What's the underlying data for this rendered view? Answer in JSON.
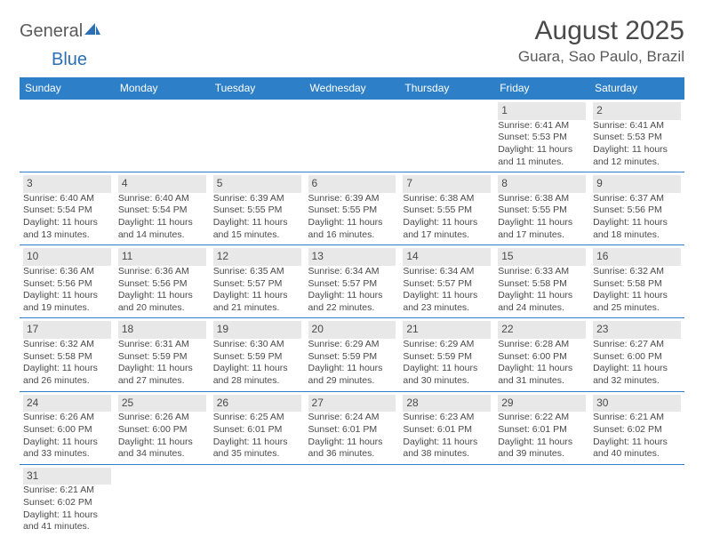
{
  "logo": {
    "text1": "General",
    "text2": "Blue"
  },
  "title": "August 2025",
  "location": "Guara, Sao Paulo, Brazil",
  "dayHeaders": [
    "Sunday",
    "Monday",
    "Tuesday",
    "Wednesday",
    "Thursday",
    "Friday",
    "Saturday"
  ],
  "colors": {
    "headerBg": "#2d7fc7",
    "headerText": "#ffffff",
    "dayNumBg": "#e8e8e8",
    "borderColor": "#2d7fc7",
    "textColor": "#4a4a4a",
    "logoBlue": "#2d6fb5"
  },
  "weeks": [
    [
      null,
      null,
      null,
      null,
      null,
      {
        "n": "1",
        "sunrise": "Sunrise: 6:41 AM",
        "sunset": "Sunset: 5:53 PM",
        "daylight": "Daylight: 11 hours and 11 minutes."
      },
      {
        "n": "2",
        "sunrise": "Sunrise: 6:41 AM",
        "sunset": "Sunset: 5:53 PM",
        "daylight": "Daylight: 11 hours and 12 minutes."
      }
    ],
    [
      {
        "n": "3",
        "sunrise": "Sunrise: 6:40 AM",
        "sunset": "Sunset: 5:54 PM",
        "daylight": "Daylight: 11 hours and 13 minutes."
      },
      {
        "n": "4",
        "sunrise": "Sunrise: 6:40 AM",
        "sunset": "Sunset: 5:54 PM",
        "daylight": "Daylight: 11 hours and 14 minutes."
      },
      {
        "n": "5",
        "sunrise": "Sunrise: 6:39 AM",
        "sunset": "Sunset: 5:55 PM",
        "daylight": "Daylight: 11 hours and 15 minutes."
      },
      {
        "n": "6",
        "sunrise": "Sunrise: 6:39 AM",
        "sunset": "Sunset: 5:55 PM",
        "daylight": "Daylight: 11 hours and 16 minutes."
      },
      {
        "n": "7",
        "sunrise": "Sunrise: 6:38 AM",
        "sunset": "Sunset: 5:55 PM",
        "daylight": "Daylight: 11 hours and 17 minutes."
      },
      {
        "n": "8",
        "sunrise": "Sunrise: 6:38 AM",
        "sunset": "Sunset: 5:55 PM",
        "daylight": "Daylight: 11 hours and 17 minutes."
      },
      {
        "n": "9",
        "sunrise": "Sunrise: 6:37 AM",
        "sunset": "Sunset: 5:56 PM",
        "daylight": "Daylight: 11 hours and 18 minutes."
      }
    ],
    [
      {
        "n": "10",
        "sunrise": "Sunrise: 6:36 AM",
        "sunset": "Sunset: 5:56 PM",
        "daylight": "Daylight: 11 hours and 19 minutes."
      },
      {
        "n": "11",
        "sunrise": "Sunrise: 6:36 AM",
        "sunset": "Sunset: 5:56 PM",
        "daylight": "Daylight: 11 hours and 20 minutes."
      },
      {
        "n": "12",
        "sunrise": "Sunrise: 6:35 AM",
        "sunset": "Sunset: 5:57 PM",
        "daylight": "Daylight: 11 hours and 21 minutes."
      },
      {
        "n": "13",
        "sunrise": "Sunrise: 6:34 AM",
        "sunset": "Sunset: 5:57 PM",
        "daylight": "Daylight: 11 hours and 22 minutes."
      },
      {
        "n": "14",
        "sunrise": "Sunrise: 6:34 AM",
        "sunset": "Sunset: 5:57 PM",
        "daylight": "Daylight: 11 hours and 23 minutes."
      },
      {
        "n": "15",
        "sunrise": "Sunrise: 6:33 AM",
        "sunset": "Sunset: 5:58 PM",
        "daylight": "Daylight: 11 hours and 24 minutes."
      },
      {
        "n": "16",
        "sunrise": "Sunrise: 6:32 AM",
        "sunset": "Sunset: 5:58 PM",
        "daylight": "Daylight: 11 hours and 25 minutes."
      }
    ],
    [
      {
        "n": "17",
        "sunrise": "Sunrise: 6:32 AM",
        "sunset": "Sunset: 5:58 PM",
        "daylight": "Daylight: 11 hours and 26 minutes."
      },
      {
        "n": "18",
        "sunrise": "Sunrise: 6:31 AM",
        "sunset": "Sunset: 5:59 PM",
        "daylight": "Daylight: 11 hours and 27 minutes."
      },
      {
        "n": "19",
        "sunrise": "Sunrise: 6:30 AM",
        "sunset": "Sunset: 5:59 PM",
        "daylight": "Daylight: 11 hours and 28 minutes."
      },
      {
        "n": "20",
        "sunrise": "Sunrise: 6:29 AM",
        "sunset": "Sunset: 5:59 PM",
        "daylight": "Daylight: 11 hours and 29 minutes."
      },
      {
        "n": "21",
        "sunrise": "Sunrise: 6:29 AM",
        "sunset": "Sunset: 5:59 PM",
        "daylight": "Daylight: 11 hours and 30 minutes."
      },
      {
        "n": "22",
        "sunrise": "Sunrise: 6:28 AM",
        "sunset": "Sunset: 6:00 PM",
        "daylight": "Daylight: 11 hours and 31 minutes."
      },
      {
        "n": "23",
        "sunrise": "Sunrise: 6:27 AM",
        "sunset": "Sunset: 6:00 PM",
        "daylight": "Daylight: 11 hours and 32 minutes."
      }
    ],
    [
      {
        "n": "24",
        "sunrise": "Sunrise: 6:26 AM",
        "sunset": "Sunset: 6:00 PM",
        "daylight": "Daylight: 11 hours and 33 minutes."
      },
      {
        "n": "25",
        "sunrise": "Sunrise: 6:26 AM",
        "sunset": "Sunset: 6:00 PM",
        "daylight": "Daylight: 11 hours and 34 minutes."
      },
      {
        "n": "26",
        "sunrise": "Sunrise: 6:25 AM",
        "sunset": "Sunset: 6:01 PM",
        "daylight": "Daylight: 11 hours and 35 minutes."
      },
      {
        "n": "27",
        "sunrise": "Sunrise: 6:24 AM",
        "sunset": "Sunset: 6:01 PM",
        "daylight": "Daylight: 11 hours and 36 minutes."
      },
      {
        "n": "28",
        "sunrise": "Sunrise: 6:23 AM",
        "sunset": "Sunset: 6:01 PM",
        "daylight": "Daylight: 11 hours and 38 minutes."
      },
      {
        "n": "29",
        "sunrise": "Sunrise: 6:22 AM",
        "sunset": "Sunset: 6:01 PM",
        "daylight": "Daylight: 11 hours and 39 minutes."
      },
      {
        "n": "30",
        "sunrise": "Sunrise: 6:21 AM",
        "sunset": "Sunset: 6:02 PM",
        "daylight": "Daylight: 11 hours and 40 minutes."
      }
    ],
    [
      {
        "n": "31",
        "sunrise": "Sunrise: 6:21 AM",
        "sunset": "Sunset: 6:02 PM",
        "daylight": "Daylight: 11 hours and 41 minutes."
      },
      null,
      null,
      null,
      null,
      null,
      null
    ]
  ]
}
